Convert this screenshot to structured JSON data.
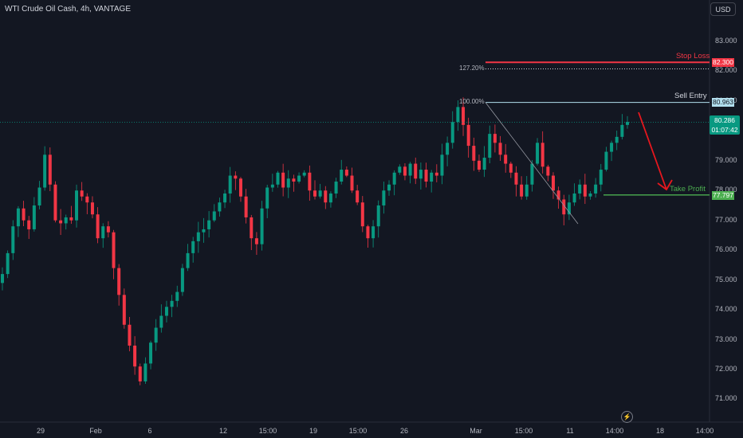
{
  "header": {
    "symbol": "WTI Crude Oil Cash, 4h, VANTAGE",
    "currency_button": "USD"
  },
  "price_tag": {
    "value": "80.286",
    "countdown": "01:07:42"
  },
  "levels": {
    "stop_loss": {
      "label": "Stop Loss",
      "value": "82.300",
      "color": "#f23645"
    },
    "fib_127": {
      "label": "127.20%"
    },
    "sell_entry": {
      "label": "Sell Entry",
      "value": "80.963",
      "color": "#b2dfee"
    },
    "fib_100": {
      "label": "100.00%"
    },
    "take_profit": {
      "label": "Take Profit",
      "value": "77.797",
      "color": "#4caf50"
    }
  },
  "colors": {
    "up": "#089981",
    "down": "#f23645",
    "background": "#131722"
  },
  "icons": {
    "flash": "lightning-icon"
  },
  "chart_data": {
    "type": "candlestick",
    "ylim": [
      70.6,
      83.7
    ],
    "yticks": [
      "83.000",
      "82.000",
      "81.000",
      "80.000",
      "79.000",
      "78.000",
      "77.000",
      "76.000",
      "75.000",
      "74.000",
      "73.000",
      "72.000",
      "71.000"
    ],
    "xticks": [
      "29",
      "Feb",
      "6",
      "12",
      "15:00",
      "19",
      "15:00",
      "26",
      "Mar",
      "15:00",
      "11",
      "14:00",
      "18",
      "14:00"
    ],
    "path": [
      75.2,
      75.9,
      76.8,
      77.4,
      77.0,
      76.7,
      77.5,
      78.1,
      79.2,
      78.2,
      77.0,
      76.9,
      77.1,
      77.0,
      78.0,
      77.8,
      77.6,
      77.2,
      76.4,
      76.8,
      76.6,
      75.4,
      74.5,
      73.5,
      72.8,
      72.1,
      71.6,
      72.2,
      72.9,
      73.4,
      73.8,
      74.1,
      74.3,
      74.6,
      75.4,
      75.9,
      76.3,
      76.6,
      76.7,
      77.0,
      77.3,
      77.6,
      77.9,
      78.5,
      78.4,
      77.8,
      77.1,
      76.4,
      76.2,
      77.4,
      78.1,
      78.2,
      78.6,
      78.1,
      78.4,
      78.3,
      78.5,
      78.6,
      78.0,
      77.8,
      78.0,
      77.6,
      77.9,
      78.3,
      78.7,
      78.5,
      78.0,
      77.6,
      76.8,
      76.4,
      76.8,
      77.5,
      78.0,
      78.2,
      78.6,
      78.8,
      78.5,
      78.9,
      78.4,
      78.7,
      78.3,
      78.6,
      78.5,
      79.2,
      79.6,
      80.3,
      80.8,
      80.2,
      79.5,
      79.0,
      78.7,
      79.1,
      79.9,
      79.6,
      79.2,
      78.9,
      78.6,
      78.2,
      77.8,
      78.2,
      78.9,
      79.6,
      78.8,
      78.5,
      78.0,
      77.7,
      77.2,
      77.6,
      77.9,
      78.2,
      77.8,
      77.9,
      78.2,
      78.7,
      79.3,
      79.6,
      79.8,
      80.2,
      80.3
    ]
  }
}
